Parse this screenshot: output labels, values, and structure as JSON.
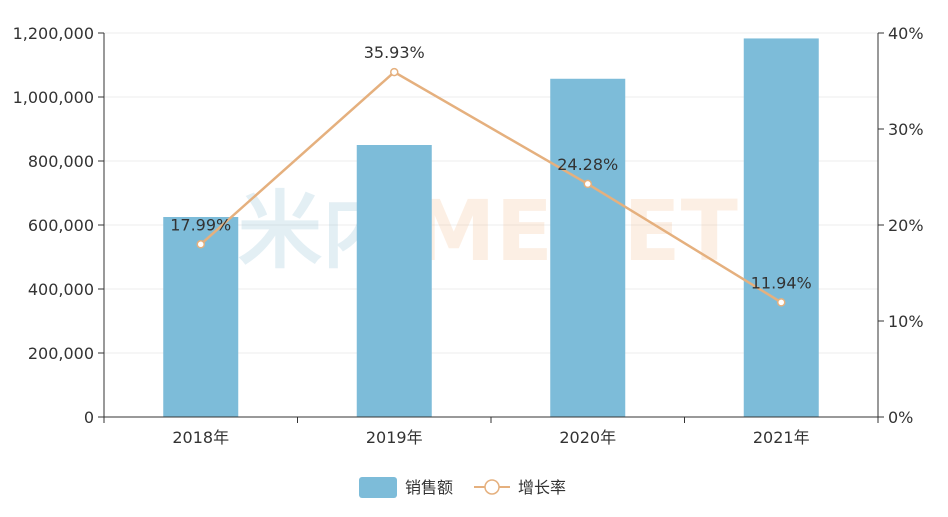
{
  "watermark": {
    "cn": "米内",
    "en": "MENET"
  },
  "chart_data": {
    "type": "bar",
    "categories": [
      "2018年",
      "2019年",
      "2020年",
      "2021年"
    ],
    "series": [
      {
        "name": "销售额",
        "type": "bar",
        "axis": "left",
        "values": [
          625000,
          850000,
          1057000,
          1183000
        ],
        "color": "#7dbcd9"
      },
      {
        "name": "增长率",
        "type": "line",
        "axis": "right",
        "values": [
          17.99,
          35.93,
          24.28,
          11.94
        ],
        "labels": [
          "17.99%",
          "35.93%",
          "24.28%",
          "11.94%"
        ],
        "color": "#e5b07e"
      }
    ],
    "y_left": {
      "min": 0,
      "max": 1200000,
      "ticks": [
        "0",
        "200,000",
        "400,000",
        "600,000",
        "800,000",
        "1,000,000",
        "1,200,000"
      ]
    },
    "y_right": {
      "min": 0,
      "max": 40,
      "ticks": [
        "0%",
        "10%",
        "20%",
        "30%",
        "40%"
      ]
    },
    "grid": true,
    "legend_position": "bottom-center"
  }
}
